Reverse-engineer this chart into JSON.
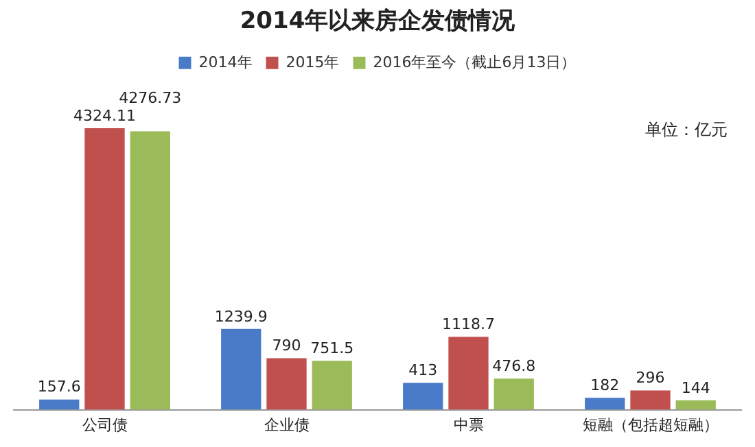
{
  "chart_data": {
    "type": "bar",
    "title": "2014年以来房企发债情况",
    "categories": [
      "公司债",
      "企业债",
      "中票",
      "短融（包括超短融）"
    ],
    "series": [
      {
        "name": "2014年",
        "color": "#4a7bc8",
        "values": [
          157.6,
          1239.9,
          413,
          182
        ]
      },
      {
        "name": "2015年",
        "color": "#c0504d",
        "values": [
          4324.11,
          790,
          1118.7,
          296
        ]
      },
      {
        "name": "2016年至今（截止6月13日）",
        "color": "#9bbb59",
        "values": [
          4276.73,
          751.5,
          476.8,
          144
        ]
      }
    ],
    "data_labels": true,
    "legend": "top",
    "grid": false,
    "tick_labels": "x",
    "annotations": [
      "单位：亿元"
    ]
  }
}
